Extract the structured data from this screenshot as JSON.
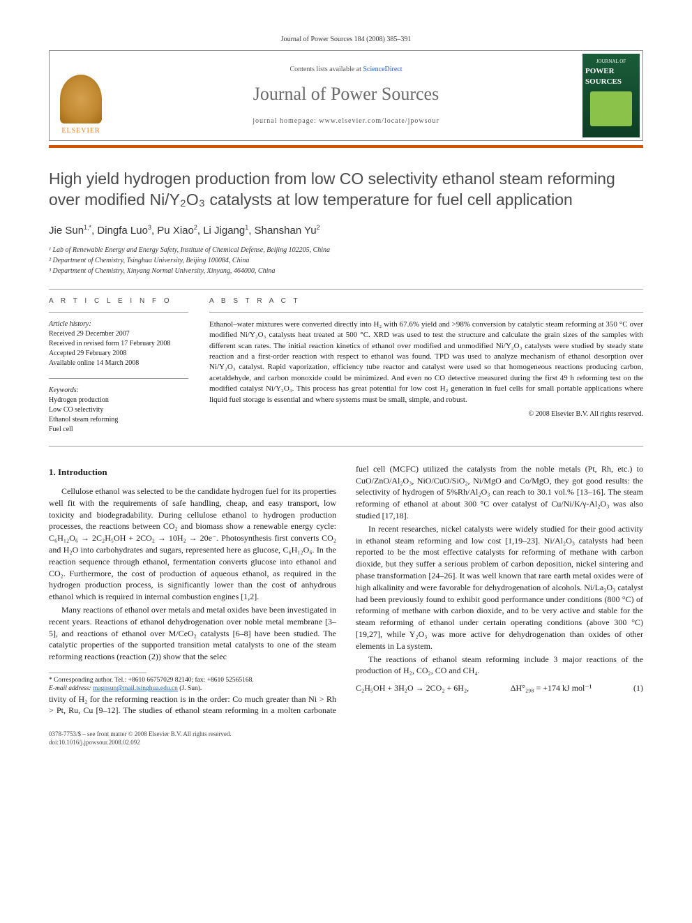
{
  "header": {
    "citation": "Journal of Power Sources 184 (2008) 385–391",
    "contents_prefix": "Contents lists available at ",
    "contents_link": "ScienceDirect",
    "journal_name": "Journal of Power Sources",
    "homepage_label": "journal homepage: www.elsevier.com/locate/jpowsour",
    "publisher": "ELSEVIER",
    "cover_small_top": "JOURNAL OF",
    "cover_small_big": "POWER SOURCES"
  },
  "title": "High yield hydrogen production from low CO selectivity ethanol steam reforming over modified Ni/Y₂O₃ catalysts at low temperature for fuel cell application",
  "authors_html": "Jie Sun<sup>1,*</sup>, Dingfa Luo<sup>3</sup>, Pu Xiao<sup>2</sup>, Li Jigang<sup>1</sup>, Shanshan Yu<sup>2</sup>",
  "affiliations": [
    "¹ Lab of Renewable Energy and Energy Safety, Institute of Chemical Defense, Beijing 102205, China",
    "² Department of Chemistry, Tsinghua University, Beijing 100084, China",
    "³ Department of Chemistry, Xinyang Normal University, Xinyang, 464000, China"
  ],
  "info_labels": {
    "article_info": "A R T I C L E   I N F O",
    "abstract": "A B S T R A C T",
    "history_label": "Article history:",
    "keywords_label": "Keywords:"
  },
  "history": [
    "Received 29 December 2007",
    "Received in revised form 17 February 2008",
    "Accepted 29 February 2008",
    "Available online 14 March 2008"
  ],
  "keywords": [
    "Hydrogen production",
    "Low CO selectivity",
    "Ethanol steam reforming",
    "Fuel cell"
  ],
  "abstract": "Ethanol–water mixtures were converted directly into H₂ with 67.6% yield and >98% conversion by catalytic steam reforming at 350 °C over modified Ni/Y₂O₃ catalysts heat treated at 500 °C. XRD was used to test the structure and calculate the grain sizes of the samples with different scan rates. The initial reaction kinetics of ethanol over modified and unmodified Ni/Y₂O₃ catalysts were studied by steady state reaction and a first-order reaction with respect to ethanol was found. TPD was used to analyze mechanism of ethanol desorption over Ni/Y₂O₃ catalyst. Rapid vaporization, efficiency tube reactor and catalyst were used so that homogeneous reactions producing carbon, acetaldehyde, and carbon monoxide could be minimized. And even no CO detective measured during the first 49 h reforming test on the modified catalyst Ni/Y₂O₃. This process has great potential for low cost H₂ generation in fuel cells for small portable applications where liquid fuel storage is essential and where systems must be small, simple, and robust.",
  "copyright": "© 2008 Elsevier B.V. All rights reserved.",
  "section1_heading": "1. Introduction",
  "para1": "Cellulose ethanol was selected to be the candidate hydrogen fuel for its properties well fit with the requirements of safe handling, cheap, and easy transport, low toxicity and biodegradability. During cellulose ethanol to hydrogen production processes, the reactions between CO₂ and biomass show a renewable energy cycle: C₆H₁₂O₆ → 2C₂H₅OH + 2CO₂ → 10H₂ → 20e⁻. Photosynthesis first converts CO₂ and H₂O into carbohydrates and sugars, represented here as glucose, C₆H₁₂O₆. In the reaction sequence through ethanol, fermentation converts glucose into ethanol and CO₂. Furthermore, the cost of production of aqueous ethanol, as required in the hydrogen production process, is significantly lower than the cost of anhydrous ethanol which is required in internal combustion engines [1,2].",
  "para2": "Many reactions of ethanol over metals and metal oxides have been investigated in recent years. Reactions of ethanol dehydrogenation over noble metal membrane [3–5], and reactions of ethanol over M/CeO₂ catalysts [6–8] have been studied. The catalytic properties of the supported transition metal catalysts to one of the steam reforming reactions (reaction (2)) show that the selec",
  "para2b": "tivity of H₂ for the reforming reaction is in the order: Co much greater than Ni > Rh > Pt, Ru, Cu [9–12]. The studies of ethanol steam reforming in a molten carbonate fuel cell (MCFC) utilized the catalysts from the noble metals (Pt, Rh, etc.) to CuO/ZnO/Al₂O₃, NiO/CuO/SiO₂, Ni/MgO and Co/MgO, they got good results: the selectivity of hydrogen of 5%Rh/Al₂O₃ can reach to 30.1 vol.% [13–16]. The steam reforming of ethanol at about 300 °C over catalyst of Cu/Ni/K/γ-Al₂O₃ was also studied [17,18].",
  "para3": "In recent researches, nickel catalysts were widely studied for their good activity in ethanol steam reforming and low cost [1,19–23]. Ni/Al₂O₃ catalysts had been reported to be the most effective catalysts for reforming of methane with carbon dioxide, but they suffer a serious problem of carbon deposition, nickel sintering and phase transformation [24–26]. It was well known that rare earth metal oxides were of high alkalinity and were favorable for dehydrogenation of alcohols. Ni/La₂O₃ catalyst had been previously found to exhibit good performance under conditions (800 °C) of reforming of methane with carbon dioxide, and to be very active and stable for the steam reforming of ethanol under certain operating conditions (above 300 °C) [19,27], while Y₂O₃ was more active for dehydrogenation than oxides of other elements in La system.",
  "para4": "The reactions of ethanol steam reforming include 3 major reactions of the production of H₂, CO₂, CO and CH₄.",
  "equation": {
    "lhs": "C₂H₅OH + 3H₂O → 2CO₂ + 6H₂,",
    "rhs": "ΔH°₂₉₈ = +174 kJ mol⁻¹",
    "num": "(1)"
  },
  "footnote": {
    "line1": "* Corresponding author. Tel.: +8610 66757029 82140; fax: +8610 52565168.",
    "line2_label": "E-mail address: ",
    "line2_email": "magnsun@mail.tsinghua.edu.cn",
    "line2_tail": " (J. Sun)."
  },
  "footer": {
    "line1": "0378-7753/$ – see front matter © 2008 Elsevier B.V. All rights reserved.",
    "line2": "doi:10.1016/j.jpowsour.2008.02.092"
  },
  "colors": {
    "orange_bar": "#d35400",
    "link": "#2060c0",
    "title_gray": "#4a4a4a",
    "journal_gray": "#6a6a6a"
  }
}
